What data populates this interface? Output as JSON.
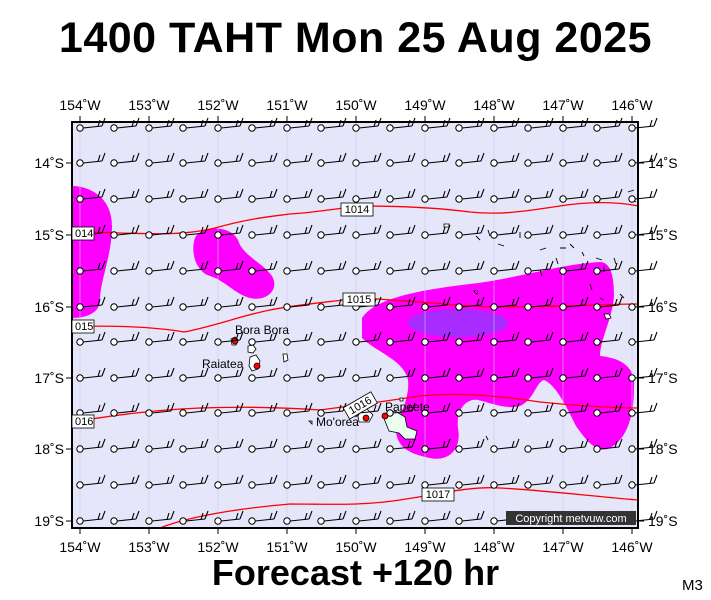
{
  "title": "1400 TAHT Mon 25 Aug 2025",
  "footer": "Forecast +120 hr",
  "corner_code": "M3",
  "copyright": "Copyright metvuw.com",
  "axes": {
    "lon_labels": [
      "154˚W",
      "153˚W",
      "152˚W",
      "151˚W",
      "150˚W",
      "149˚W",
      "148˚W",
      "147˚W",
      "146˚W"
    ],
    "lat_labels": [
      "14˚S",
      "15˚S",
      "16˚S",
      "17˚S",
      "18˚S",
      "19˚S"
    ]
  },
  "isobars": [
    {
      "value": "1014",
      "label": "1014"
    },
    {
      "value": "1015",
      "label": "1015"
    },
    {
      "value": "1016",
      "label": "1016"
    },
    {
      "value": "1017",
      "label": "1017"
    }
  ],
  "edge_labels": {
    "left_1014": "014",
    "left_1015": "015",
    "left_1016": "016"
  },
  "places": [
    {
      "name": "Bora Bora"
    },
    {
      "name": "Raiatea"
    },
    {
      "name": "Mo'orea"
    },
    {
      "name": "Papeete"
    }
  ],
  "colors": {
    "background": "#e6e6fa",
    "rain_light": "#ff00ff",
    "rain_heavy": "#9933ff",
    "isobar": "#ff0000",
    "island": "#ffffff",
    "marker": "#ff0000"
  }
}
